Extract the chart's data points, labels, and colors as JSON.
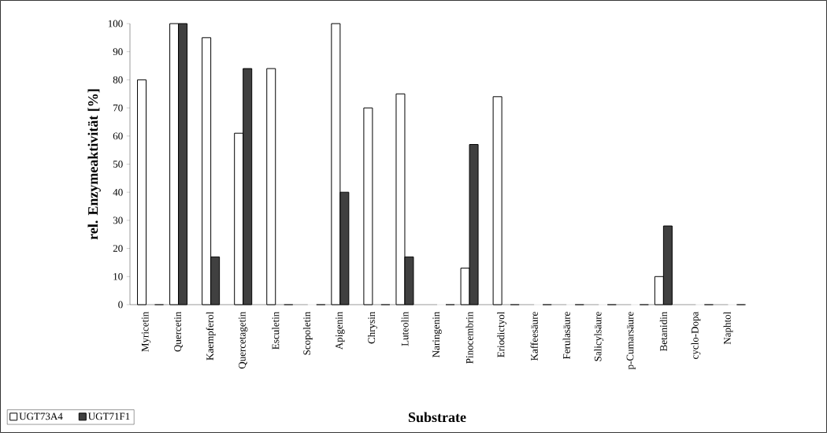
{
  "chart_data": {
    "type": "bar",
    "xlabel": "Substrate",
    "ylabel": "rel. Enzymeaktivität [%]",
    "categories": [
      "Myricetin",
      "Quercetin",
      "Kaempferol",
      "Quercetagetin",
      "Esculetin",
      "Scopoletin",
      "Apigenin",
      "Chrysin",
      "Luteolin",
      "Naringenin",
      "Pinocembrin",
      "Eriodictyol",
      "Kaffeesäure",
      "Ferulasäure",
      "Salicylsäure",
      "p-Cumarsäure",
      "Betanidin",
      "cyclo-Dopa",
      "Naphtol"
    ],
    "series": [
      {
        "name": "UGT73A4",
        "color": "#ffffff",
        "values": [
          80,
          100,
          95,
          61,
          84,
          0,
          100,
          70,
          75,
          0,
          13,
          74,
          0,
          0,
          0,
          0,
          10,
          0,
          0
        ]
      },
      {
        "name": "UGT71F1",
        "color": "#404040",
        "values": [
          0,
          100,
          17,
          84,
          0,
          0,
          40,
          0,
          17,
          0,
          57,
          0,
          0,
          0,
          0,
          0,
          28,
          0,
          0
        ]
      }
    ],
    "ylim": [
      0,
      100
    ],
    "yticks": [
      0,
      10,
      20,
      30,
      40,
      50,
      60,
      70,
      80,
      90,
      100
    ],
    "grid": false,
    "legend": "bottom left"
  }
}
